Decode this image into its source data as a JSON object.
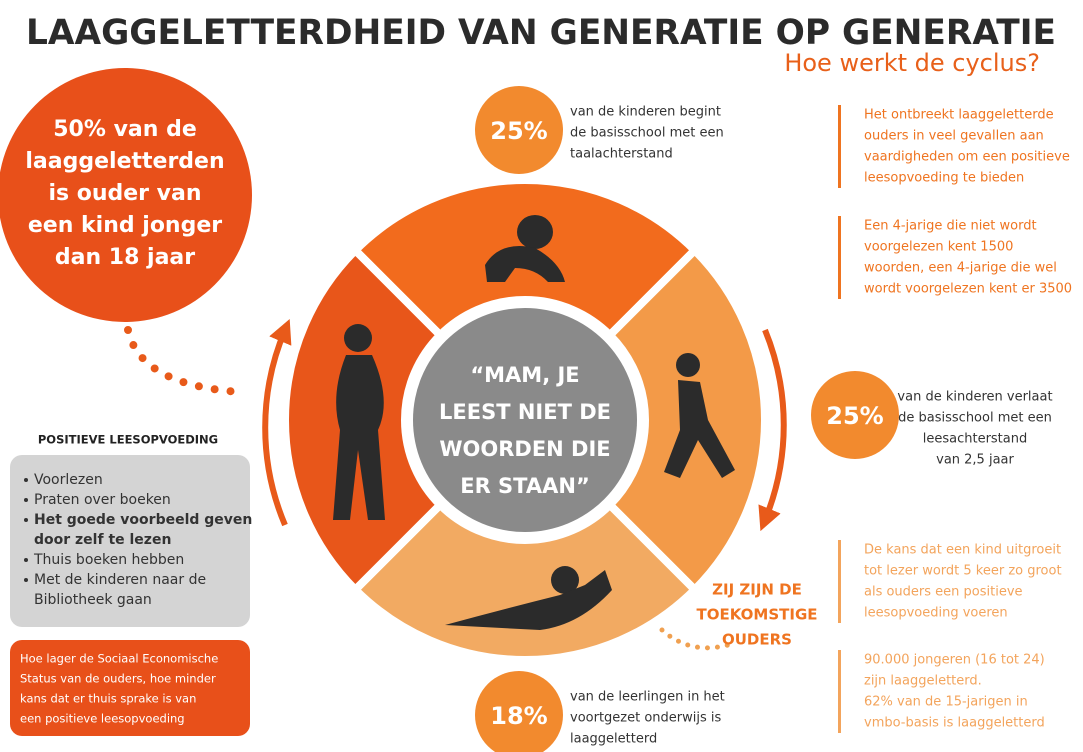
{
  "title": "LAAGGELETTERDHEID VAN GENERATIE OP GENERATIE",
  "subtitle": "Hoe werkt de cyclus?",
  "left_stat": {
    "lines": [
      "50% van de",
      "laaggeletterden",
      "is ouder van",
      "een kind jonger",
      "dan 18 jaar"
    ]
  },
  "center_quote": {
    "lines": [
      "“MAM, JE",
      "LEEST NIET DE",
      "WOORDEN DIE",
      "ER STAAN”"
    ]
  },
  "stats": [
    {
      "value": "25%",
      "lines": [
        "van de kinderen begint",
        "de basisschool met een",
        "taalachterstand"
      ]
    },
    {
      "value": "25%",
      "lines": [
        "van de kinderen verlaat",
        "de basisschool met een",
        "leesachterstand",
        "van 2,5 jaar"
      ]
    },
    {
      "value": "18%",
      "lines": [
        "van de leerlingen in het",
        "voortgezet onderwijs is",
        "laaggeletterd"
      ]
    }
  ],
  "notes": [
    {
      "lines": [
        "Het ontbreekt laaggeletterde",
        "ouders in veel gevallen aan",
        "vaardigheden om een positieve",
        "leesopvoeding te bieden"
      ]
    },
    {
      "lines": [
        "Een 4-jarige die niet wordt",
        "voorgelezen kent 1500",
        "woorden, een 4-jarige die wel",
        "wordt voorgelezen kent er 3500"
      ]
    },
    {
      "lines": [
        "De kans dat een kind uitgroeit",
        "tot lezer wordt 5 keer zo groot",
        "als ouders een positieve",
        "leesopvoeding voeren"
      ]
    },
    {
      "lines": [
        "90.000 jongeren (16 tot 24)",
        "zijn laaggeletterd.",
        "62% van de 15-jarigen in",
        "vmbo-basis is laaggeletterd"
      ]
    }
  ],
  "positive": {
    "heading": "POSITIEVE LEESOPVOEDING",
    "items": [
      [
        "Voorlezen"
      ],
      [
        "Praten over boeken"
      ],
      [
        "Het goede voorbeeld geven",
        "door zelf te lezen"
      ],
      [
        "Thuis boeken hebben"
      ],
      [
        "Met de kinderen naar de",
        "Bibliotheek gaan"
      ]
    ]
  },
  "ses_note": {
    "lines": [
      "Hoe lager de Sociaal Economische",
      "Status van de ouders, hoe minder",
      "kans dat er thuis sprake is van",
      "een positieve leesopvoeding"
    ]
  },
  "future_parents": {
    "lines": [
      "ZIJ ZIJN DE",
      "TOEKOMSTIGE",
      "OUDERS"
    ]
  }
}
